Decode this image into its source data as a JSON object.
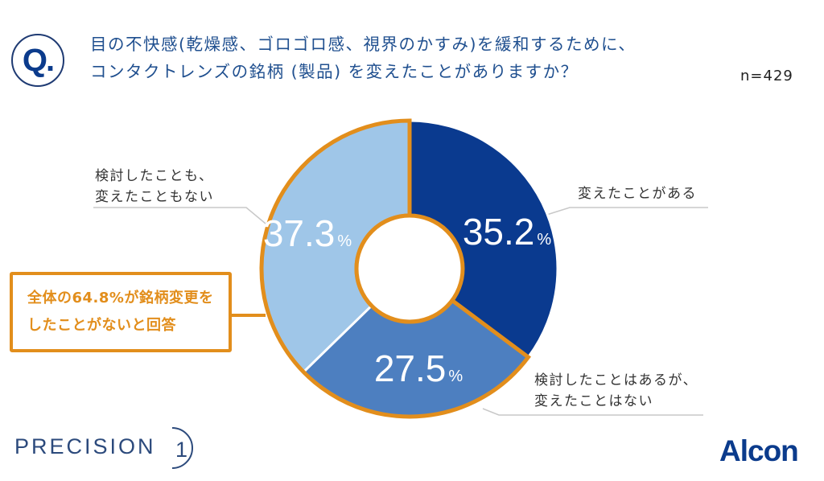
{
  "header": {
    "badge": "Q.",
    "question_lines": [
      "目の不快感(乾燥感、ゴロゴロ感、視界のかすみ)を緩和するために、",
      "コンタクトレンズの銘柄 (製品) を変えたことがありますか？"
    ],
    "sample_size": "n=429"
  },
  "callout": {
    "lines": [
      "全体の64.8%が銘柄変更を",
      "したことがないと回答"
    ]
  },
  "footer": {
    "brand_left": "PRECISION",
    "brand_left_numeral": "1",
    "brand_right": "Alcon"
  },
  "colors": {
    "dark_navy": "#0a3a8f",
    "medium_blue": "#4d7fc0",
    "light_blue": "#9fc6e8",
    "orange": "#e28e1c",
    "title_blue": "#1f4f8f"
  },
  "chart_data": {
    "type": "pie",
    "variant": "donut",
    "title": "目の不快感(乾燥感、ゴロゴロ感、視界のかすみ)を緩和するために、コンタクトレンズの銘柄 (製品) を変えたことがありますか？",
    "unit": "%",
    "start_angle": "top, clockwise",
    "slices": [
      {
        "label": "変えたことがある",
        "label_lines": [
          "変えたことがある"
        ],
        "value": 35.2,
        "display": "35.2",
        "color": "#0a3a8f"
      },
      {
        "label": "検討したことはあるが、変えたことはない",
        "label_lines": [
          "検討したことはあるが、",
          "変えたことはない"
        ],
        "value": 27.5,
        "display": "27.5",
        "color": "#4d7fc0"
      },
      {
        "label": "検討したことも、変えたこともない",
        "label_lines": [
          "検討したことも、",
          "変えたこともない"
        ],
        "value": 37.3,
        "display": "37.3",
        "color": "#9fc6e8"
      }
    ],
    "highlight": {
      "slices": [
        1,
        2
      ],
      "total": 64.8,
      "color": "#e28e1c"
    }
  }
}
